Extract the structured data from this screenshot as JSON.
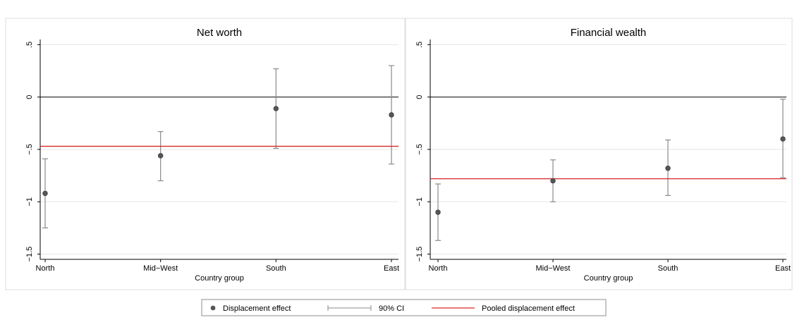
{
  "chart_data": [
    {
      "type": "scatter",
      "title": "Net worth",
      "xlabel": "Country group",
      "ylabel": "",
      "categories": [
        "North",
        "Mid−West",
        "South",
        "East"
      ],
      "yticks": [
        ".5",
        "0",
        "−.5",
        "−1",
        "−1.5"
      ],
      "ytick_values": [
        0.5,
        0,
        -0.5,
        -1,
        -1.5
      ],
      "ylim": [
        -1.55,
        0.55
      ],
      "grid": true,
      "points": [
        {
          "category": "North",
          "estimate": -0.92,
          "ci_low": -1.25,
          "ci_high": -0.59
        },
        {
          "category": "Mid−West",
          "estimate": -0.56,
          "ci_low": -0.8,
          "ci_high": -0.33
        },
        {
          "category": "South",
          "estimate": -0.11,
          "ci_low": -0.49,
          "ci_high": 0.27
        },
        {
          "category": "East",
          "estimate": -0.17,
          "ci_low": -0.64,
          "ci_high": 0.3
        }
      ],
      "pooled": -0.47,
      "zero_line": 0
    },
    {
      "type": "scatter",
      "title": "Financial wealth",
      "xlabel": "Country group",
      "ylabel": "",
      "categories": [
        "North",
        "Mid−West",
        "South",
        "East"
      ],
      "yticks": [
        ".5",
        "0",
        "−.5",
        "−1",
        "−1.5"
      ],
      "ytick_values": [
        0.5,
        0,
        -0.5,
        -1,
        -1.5
      ],
      "ylim": [
        -1.55,
        0.55
      ],
      "grid": true,
      "points": [
        {
          "category": "North",
          "estimate": -1.1,
          "ci_low": -1.37,
          "ci_high": -0.83
        },
        {
          "category": "Mid−West",
          "estimate": -0.8,
          "ci_low": -1.0,
          "ci_high": -0.6
        },
        {
          "category": "South",
          "estimate": -0.68,
          "ci_low": -0.94,
          "ci_high": -0.41
        },
        {
          "category": "East",
          "estimate": -0.4,
          "ci_low": -0.77,
          "ci_high": -0.02
        }
      ],
      "pooled": -0.78,
      "zero_line": 0
    }
  ],
  "legend": {
    "placement": "bottom",
    "items": [
      {
        "label": "Displacement effect",
        "kind": "marker"
      },
      {
        "label": "90% CI",
        "kind": "ci"
      },
      {
        "label": "Pooled displacement effect",
        "kind": "line"
      }
    ]
  },
  "colors": {
    "marker": "#555555",
    "ci": "#8a8a8a",
    "pooled": "#d62728",
    "zero": "#000000",
    "grid": "#e6e6e6",
    "panel_border": "#dcdcdc"
  }
}
